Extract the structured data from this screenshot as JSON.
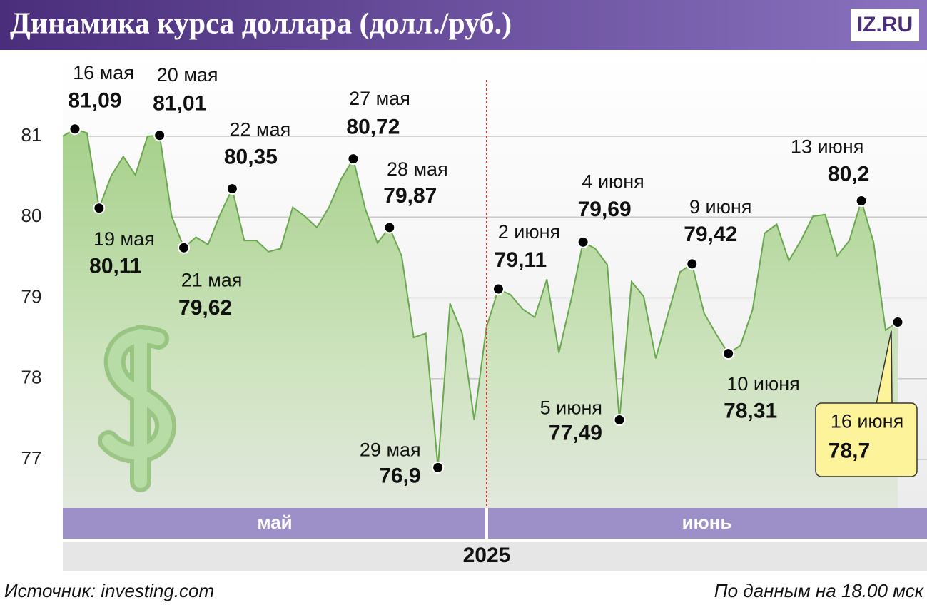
{
  "title": "Динамика курса доллара (долл./руб.)",
  "logo": "IZ.RU",
  "source": "Источник: investing.com",
  "note": "По данным на 18.00 мск",
  "chart_data": {
    "type": "area",
    "color": "#6aa84f",
    "categories": [
      null,
      "16 мая",
      null,
      "19 мая",
      null,
      null,
      null,
      null,
      "20 мая",
      null,
      "21 мая",
      null,
      null,
      null,
      "22 мая",
      null,
      null,
      null,
      null,
      null,
      null,
      null,
      null,
      null,
      "27 мая",
      null,
      null,
      "28 мая",
      null,
      null,
      null,
      "29 мая",
      null,
      null,
      null,
      null,
      "2 июня",
      null,
      null,
      null,
      null,
      null,
      null,
      "4 июня",
      null,
      null,
      "5 июня",
      null,
      null,
      null,
      null,
      null,
      "9 июня",
      null,
      null,
      "10 июня",
      null,
      null,
      null,
      null,
      null,
      null,
      null,
      null,
      null,
      null,
      "13 июня",
      null,
      null,
      "16 июня"
    ],
    "values": [
      81.0,
      81.09,
      81.04,
      80.11,
      80.51,
      80.75,
      80.52,
      81.0,
      81.01,
      80.01,
      79.62,
      79.75,
      79.66,
      80.03,
      80.35,
      79.71,
      79.71,
      79.57,
      79.61,
      80.12,
      80.01,
      79.87,
      80.12,
      80.47,
      80.72,
      80.1,
      79.68,
      79.87,
      79.52,
      78.51,
      78.56,
      76.9,
      78.93,
      78.56,
      77.49,
      78.63,
      79.11,
      79.04,
      78.86,
      78.76,
      79.23,
      78.32,
      78.97,
      79.69,
      79.61,
      79.41,
      77.49,
      79.2,
      79.02,
      78.25,
      78.79,
      79.32,
      79.42,
      78.81,
      78.55,
      78.31,
      78.41,
      78.85,
      79.8,
      79.91,
      79.46,
      79.71,
      80.01,
      80.03,
      79.52,
      79.71,
      80.2,
      79.69,
      78.6,
      78.7
    ],
    "value_labels": [
      null,
      "81,09",
      null,
      "80,11",
      null,
      null,
      null,
      null,
      "81,01",
      null,
      "79,62",
      null,
      null,
      null,
      "80,35",
      null,
      null,
      null,
      null,
      null,
      null,
      null,
      null,
      null,
      "80,72",
      null,
      null,
      "79,87",
      null,
      null,
      null,
      "76,9",
      null,
      null,
      null,
      null,
      "79,11",
      null,
      null,
      null,
      null,
      null,
      null,
      "79,69",
      null,
      null,
      "77,49",
      null,
      null,
      null,
      null,
      null,
      "79,42",
      null,
      null,
      "78,31",
      null,
      null,
      null,
      null,
      null,
      null,
      null,
      null,
      null,
      null,
      "80,2",
      null,
      null,
      "78,7"
    ],
    "ylim": [
      76.4,
      82.05
    ],
    "yticks": [
      77,
      78,
      79,
      80,
      81
    ],
    "grid": true,
    "months": [
      "май",
      "июнь"
    ],
    "year": "2025"
  }
}
